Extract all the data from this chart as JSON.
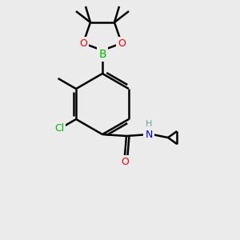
{
  "background_color": "#ebebeb",
  "bond_color": "#000000",
  "bond_width": 1.8,
  "figsize": [
    3.0,
    3.0
  ],
  "dpi": 100,
  "colors": {
    "C": "#000000",
    "H": "#6fa0a0",
    "N": "#0000ff",
    "O": "#ff0000",
    "B": "#00bb00",
    "Cl": "#00bb00"
  }
}
